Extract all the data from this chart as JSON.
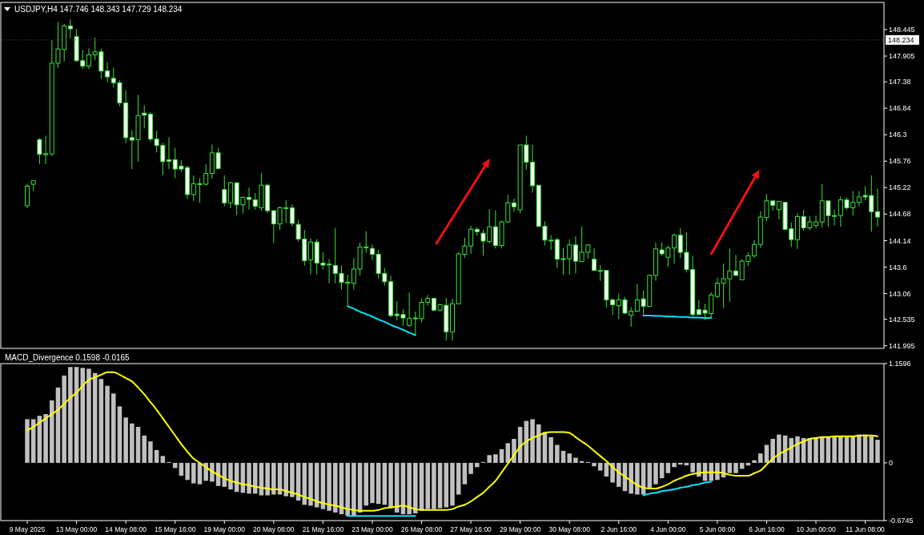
{
  "chart_data": [
    {
      "type": "candlestick",
      "title": "USDJPY,H4  147.746 148.343 147.729 148.234",
      "tick_labels": "y",
      "categories": [
        null,
        null,
        null,
        null,
        null,
        null,
        null,
        null,
        null,
        null,
        null,
        null,
        null,
        null,
        null,
        null,
        null,
        null,
        null,
        null,
        null,
        null,
        null,
        null,
        null,
        null,
        null,
        null,
        null,
        null,
        null,
        null,
        null,
        null,
        null,
        null,
        null,
        null,
        null,
        null,
        null,
        null,
        null,
        null,
        null,
        null,
        null,
        null,
        null,
        null,
        null,
        null,
        null,
        null,
        null,
        null,
        null,
        null,
        null,
        null,
        null,
        null,
        null,
        null,
        null,
        null,
        null,
        null,
        null,
        null,
        null,
        null,
        null,
        null,
        null,
        null,
        null,
        null,
        null,
        null,
        null,
        null,
        null,
        null,
        null,
        null,
        null,
        null,
        null,
        null,
        null,
        null,
        null,
        null,
        null,
        null,
        null,
        null,
        null,
        null,
        null,
        null,
        null,
        null,
        null,
        null,
        null,
        null,
        null,
        null,
        null,
        null,
        null,
        null,
        null,
        null,
        null,
        null,
        null,
        null,
        null,
        null,
        null,
        null,
        null,
        null,
        null,
        null,
        null,
        null,
        null,
        null,
        null,
        null,
        null,
        null,
        null,
        null,
        null
      ],
      "ohlc": [
        [
          144.85,
          145.3,
          144.8,
          145.25
        ],
        [
          145.29,
          145.36,
          145.15,
          145.36
        ],
        [
          146.2,
          146.23,
          145.7,
          145.9
        ],
        [
          145.91,
          146.28,
          145.7,
          145.91
        ],
        [
          145.91,
          148.23,
          145.86,
          147.76
        ],
        [
          147.76,
          148.6,
          147.66,
          148.05
        ],
        [
          148.04,
          148.56,
          147.8,
          148.52
        ],
        [
          148.52,
          148.65,
          148.27,
          148.46
        ],
        [
          148.3,
          148.46,
          147.79,
          147.81
        ],
        [
          147.81,
          148.03,
          147.64,
          147.7
        ],
        [
          147.7,
          148.06,
          147.64,
          147.93
        ],
        [
          147.93,
          148.28,
          147.82,
          147.99
        ],
        [
          147.99,
          148.06,
          147.44,
          147.6
        ],
        [
          147.6,
          147.78,
          147.37,
          147.48
        ],
        [
          147.45,
          147.67,
          147.26,
          147.36
        ],
        [
          147.36,
          147.41,
          146.88,
          146.95
        ],
        [
          146.95,
          147.21,
          146.13,
          146.24
        ],
        [
          146.24,
          146.39,
          145.6,
          146.19
        ],
        [
          146.2,
          147.11,
          145.75,
          146.69
        ],
        [
          146.74,
          146.9,
          146.43,
          146.7
        ],
        [
          146.72,
          146.76,
          146.16,
          146.21
        ],
        [
          146.21,
          146.38,
          145.94,
          146.08
        ],
        [
          146.08,
          146.14,
          145.47,
          145.75
        ],
        [
          145.79,
          146.25,
          145.6,
          145.76
        ],
        [
          145.79,
          146.03,
          145.41,
          145.6
        ],
        [
          145.66,
          145.78,
          145.54,
          145.6
        ],
        [
          145.63,
          145.67,
          144.99,
          145.08
        ],
        [
          145.08,
          145.47,
          144.95,
          145.3
        ],
        [
          145.3,
          145.41,
          144.91,
          145.3
        ],
        [
          145.29,
          145.7,
          145.26,
          145.51
        ],
        [
          145.51,
          146.1,
          145.4,
          145.93
        ],
        [
          145.93,
          146.03,
          145.6,
          145.61
        ],
        [
          145.18,
          145.47,
          144.84,
          144.91
        ],
        [
          144.91,
          145.34,
          144.8,
          145.32
        ],
        [
          145.32,
          145.32,
          144.66,
          144.87
        ],
        [
          144.87,
          145.04,
          144.69,
          145.02
        ],
        [
          145.02,
          145.22,
          144.77,
          144.98
        ],
        [
          144.97,
          145.11,
          144.77,
          144.84
        ],
        [
          144.81,
          145.52,
          144.75,
          145.27
        ],
        [
          145.27,
          145.3,
          144.7,
          144.75
        ],
        [
          144.75,
          144.75,
          144.09,
          144.48
        ],
        [
          144.48,
          144.84,
          144.36,
          144.81
        ],
        [
          144.81,
          144.97,
          144.5,
          144.81
        ],
        [
          144.81,
          144.88,
          144.43,
          144.49
        ],
        [
          144.47,
          144.56,
          144.12,
          144.17
        ],
        [
          144.17,
          144.36,
          143.63,
          143.73
        ],
        [
          143.75,
          144.19,
          143.45,
          144.11
        ],
        [
          144.11,
          144.17,
          143.45,
          143.68
        ],
        [
          143.68,
          143.9,
          143.55,
          143.64
        ],
        [
          143.66,
          143.76,
          143.27,
          143.66
        ],
        [
          143.63,
          144.4,
          143.27,
          143.47
        ],
        [
          143.47,
          143.63,
          143.14,
          143.29
        ],
        [
          143.29,
          143.44,
          142.8,
          143.29
        ],
        [
          143.27,
          143.78,
          143.14,
          143.56
        ],
        [
          143.56,
          144.1,
          143.43,
          144.01
        ],
        [
          144.01,
          144.33,
          143.89,
          144.01
        ],
        [
          143.98,
          144.06,
          143.74,
          143.86
        ],
        [
          143.86,
          143.95,
          143.36,
          143.47
        ],
        [
          143.47,
          143.58,
          143.22,
          143.3
        ],
        [
          143.3,
          143.42,
          142.57,
          142.61
        ],
        [
          142.64,
          142.9,
          142.51,
          142.61
        ],
        [
          142.63,
          142.74,
          142.4,
          142.56
        ],
        [
          142.41,
          143.08,
          142.38,
          142.55
        ],
        [
          142.56,
          142.69,
          142.21,
          142.56
        ],
        [
          142.55,
          142.96,
          142.47,
          142.88
        ],
        [
          142.88,
          143.03,
          142.81,
          142.96
        ],
        [
          142.96,
          142.97,
          142.7,
          142.72
        ],
        [
          142.72,
          142.85,
          142.69,
          142.83
        ],
        [
          142.82,
          142.97,
          142.1,
          142.28
        ],
        [
          142.28,
          142.95,
          142.1,
          142.85
        ],
        [
          142.85,
          143.9,
          142.84,
          143.87
        ],
        [
          143.86,
          144.2,
          143.79,
          144.03
        ],
        [
          144.03,
          144.44,
          143.87,
          144.37
        ],
        [
          144.37,
          144.41,
          144.24,
          144.32
        ],
        [
          144.29,
          144.36,
          143.83,
          144.13
        ],
        [
          144.12,
          144.78,
          144.08,
          144.42
        ],
        [
          144.42,
          144.76,
          143.98,
          144.04
        ],
        [
          144.04,
          144.55,
          143.98,
          144.52
        ],
        [
          144.52,
          145.07,
          144.51,
          144.91
        ],
        [
          144.91,
          145.0,
          144.73,
          144.83
        ],
        [
          144.77,
          146.09,
          144.7,
          146.09
        ],
        [
          146.09,
          146.28,
          145.59,
          145.74
        ],
        [
          145.74,
          146.1,
          145.12,
          145.26
        ],
        [
          145.27,
          145.27,
          144.41,
          144.43
        ],
        [
          144.43,
          144.53,
          144.04,
          144.15
        ],
        [
          144.15,
          144.25,
          143.95,
          144.15
        ],
        [
          144.16,
          144.2,
          143.58,
          143.76
        ],
        [
          143.77,
          143.99,
          143.44,
          143.77
        ],
        [
          143.77,
          144.16,
          143.44,
          144.05
        ],
        [
          144.05,
          144.23,
          143.47,
          143.72
        ],
        [
          143.71,
          144.43,
          143.71,
          143.9
        ],
        [
          143.9,
          144.07,
          143.77,
          144.05
        ],
        [
          143.76,
          143.98,
          143.52,
          143.53
        ],
        [
          143.53,
          143.64,
          143.32,
          143.53
        ],
        [
          143.53,
          143.54,
          142.78,
          142.93
        ],
        [
          142.93,
          142.96,
          142.62,
          142.83
        ],
        [
          142.81,
          143.06,
          142.54,
          142.93
        ],
        [
          142.93,
          142.99,
          142.64,
          142.66
        ],
        [
          142.62,
          142.78,
          142.38,
          142.7
        ],
        [
          142.7,
          143.26,
          142.7,
          142.93
        ],
        [
          142.95,
          143.12,
          142.62,
          142.8
        ],
        [
          142.8,
          143.45,
          142.8,
          143.43
        ],
        [
          143.43,
          144.1,
          143.32,
          143.97
        ],
        [
          143.95,
          144.1,
          143.83,
          143.87
        ],
        [
          143.8,
          144.04,
          143.6,
          143.99
        ],
        [
          143.99,
          144.28,
          143.67,
          144.25
        ],
        [
          144.25,
          144.39,
          143.79,
          143.9
        ],
        [
          143.9,
          144.31,
          143.49,
          143.55
        ],
        [
          143.55,
          143.83,
          142.59,
          142.63
        ],
        [
          142.73,
          142.92,
          142.62,
          142.63
        ],
        [
          142.72,
          142.85,
          142.52,
          142.66
        ],
        [
          142.65,
          143.08,
          142.57,
          143.03
        ],
        [
          143.0,
          143.38,
          142.97,
          143.27
        ],
        [
          143.27,
          143.67,
          142.76,
          143.36
        ],
        [
          143.36,
          143.98,
          142.89,
          143.52
        ],
        [
          143.52,
          143.85,
          143.41,
          143.43
        ],
        [
          143.34,
          143.76,
          143.33,
          143.72
        ],
        [
          143.71,
          143.9,
          143.62,
          143.83
        ],
        [
          143.83,
          144.15,
          143.79,
          144.06
        ],
        [
          144.06,
          144.74,
          143.99,
          144.62
        ],
        [
          144.61,
          145.09,
          144.54,
          144.95
        ],
        [
          144.95,
          144.95,
          144.75,
          144.86
        ],
        [
          144.77,
          144.94,
          144.57,
          144.94
        ],
        [
          144.92,
          144.92,
          144.35,
          144.37
        ],
        [
          144.38,
          144.51,
          144.01,
          144.16
        ],
        [
          144.16,
          144.7,
          143.97,
          144.63
        ],
        [
          144.63,
          144.77,
          144.34,
          144.4
        ],
        [
          144.4,
          144.64,
          144.35,
          144.52
        ],
        [
          144.45,
          144.65,
          144.39,
          144.52
        ],
        [
          144.52,
          145.29,
          144.41,
          144.95
        ],
        [
          144.95,
          144.95,
          144.42,
          144.65
        ],
        [
          144.65,
          144.77,
          144.45,
          144.65
        ],
        [
          144.65,
          145.04,
          144.42,
          144.97
        ],
        [
          144.97,
          145.02,
          144.77,
          144.81
        ],
        [
          144.81,
          145.15,
          144.65,
          144.92
        ],
        [
          144.92,
          145.15,
          144.84,
          145.03
        ],
        [
          145.06,
          145.25,
          144.96,
          145.03
        ],
        [
          145.06,
          145.47,
          144.32,
          144.73
        ],
        [
          144.73,
          145.2,
          144.43,
          144.62
        ]
      ],
      "series": [
        {
          "type": "line",
          "color": "#00e5ff",
          "values": [
            null,
            null,
            null,
            null,
            null,
            null,
            null,
            null,
            null,
            null,
            null,
            null,
            null,
            null,
            null,
            null,
            null,
            null,
            null,
            null,
            null,
            null,
            null,
            null,
            null,
            null,
            null,
            null,
            null,
            null,
            null,
            null,
            null,
            null,
            null,
            null,
            null,
            null,
            null,
            null,
            null,
            null,
            null,
            null,
            null,
            null,
            null,
            null,
            null,
            null,
            null,
            null,
            142.8,
            142.75,
            142.69,
            142.64,
            142.59,
            142.53,
            142.48,
            142.42,
            142.37,
            142.32,
            142.26,
            142.21,
            null,
            null,
            null,
            null,
            null,
            null,
            null,
            null,
            null,
            null,
            null,
            null,
            null,
            null,
            null,
            null,
            null,
            null,
            null,
            null,
            null,
            null,
            null,
            null,
            null,
            null,
            null,
            null,
            null,
            null,
            null,
            null,
            null,
            null,
            null,
            null,
            142.61,
            142.61,
            142.6,
            142.6,
            142.59,
            142.59,
            142.58,
            142.58,
            142.57,
            142.57,
            142.56,
            142.56,
            null,
            null,
            null,
            null,
            null,
            null,
            null,
            null,
            null,
            null,
            null,
            null,
            null,
            null,
            null,
            null,
            null,
            null,
            null,
            null,
            null,
            null,
            null,
            null,
            null,
            null,
            null
          ]
        }
      ],
      "ylim": [
        141.94,
        149.0
      ],
      "yticks": [
        141.995,
        142.535,
        143.06,
        143.6,
        144.14,
        144.68,
        145.22,
        145.76,
        146.3,
        146.84,
        147.38,
        147.905,
        148.445
      ],
      "ref_lines": [
        {
          "axis": "y",
          "value": 148.234,
          "label": "148.234"
        }
      ]
    },
    {
      "type": "bar",
      "title": "MACD_Divergence 0.1598 -0.0165",
      "categories": [
        "9 May 2025",
        null,
        null,
        null,
        null,
        null,
        null,
        null,
        "13 May 00:00",
        null,
        null,
        null,
        null,
        null,
        null,
        null,
        "14 May 08:00",
        null,
        null,
        null,
        null,
        null,
        null,
        null,
        "15 May 16:00",
        null,
        null,
        null,
        null,
        null,
        null,
        null,
        "19 May 00:00",
        null,
        null,
        null,
        null,
        null,
        null,
        null,
        "20 May 08:00",
        null,
        null,
        null,
        null,
        null,
        null,
        null,
        "21 May 16:00",
        null,
        null,
        null,
        null,
        null,
        null,
        null,
        "23 May 00:00",
        null,
        null,
        null,
        null,
        null,
        null,
        null,
        "26 May 08:00",
        null,
        null,
        null,
        null,
        null,
        null,
        null,
        "27 May 16:00",
        null,
        null,
        null,
        null,
        null,
        null,
        null,
        "29 May 00:00",
        null,
        null,
        null,
        null,
        null,
        null,
        null,
        "30 May 08:00",
        null,
        null,
        null,
        null,
        null,
        null,
        null,
        "2 Jun 16:00",
        null,
        null,
        null,
        null,
        null,
        null,
        null,
        "4 Jun 00:00",
        null,
        null,
        null,
        null,
        null,
        null,
        null,
        "5 Jun 08:00",
        null,
        null,
        null,
        null,
        null,
        null,
        null,
        "6 Jun 16:00",
        null,
        null,
        null,
        null,
        null,
        null,
        null,
        "10 Jun 00:00",
        null,
        null,
        null,
        null,
        null,
        null,
        null,
        "11 Jun 08:00",
        null,
        null
      ],
      "series": [
        {
          "type": "bar",
          "color": "#c0c0c0",
          "values": [
            0.51,
            0.51,
            0.55,
            0.57,
            0.73,
            0.88,
            1.02,
            1.12,
            1.12,
            1.11,
            1.1,
            1.05,
            0.98,
            0.9,
            0.81,
            0.66,
            0.53,
            0.46,
            0.42,
            0.32,
            0.25,
            0.15,
            0.08,
            0.01,
            -0.06,
            -0.15,
            -0.2,
            -0.24,
            -0.25,
            -0.21,
            -0.22,
            -0.27,
            -0.28,
            -0.31,
            -0.34,
            -0.35,
            -0.36,
            -0.36,
            -0.38,
            -0.38,
            -0.37,
            -0.37,
            -0.39,
            -0.4,
            -0.44,
            -0.49,
            -0.5,
            -0.52,
            -0.54,
            -0.56,
            -0.58,
            -0.6,
            -0.62,
            -0.62,
            -0.58,
            -0.5,
            -0.47,
            -0.48,
            -0.49,
            -0.53,
            -0.58,
            -0.6,
            -0.6,
            -0.59,
            -0.56,
            -0.54,
            -0.54,
            -0.53,
            -0.52,
            -0.5,
            -0.37,
            -0.25,
            -0.13,
            -0.05,
            0.01,
            0.09,
            0.1,
            0.16,
            0.23,
            0.28,
            0.42,
            0.49,
            0.51,
            0.45,
            0.36,
            0.3,
            0.21,
            0.14,
            0.11,
            0.06,
            0.02,
            0.01,
            -0.04,
            -0.09,
            -0.16,
            -0.23,
            -0.28,
            -0.33,
            -0.36,
            -0.37,
            -0.37,
            -0.29,
            -0.25,
            -0.18,
            -0.12,
            -0.05,
            -0.02,
            -0.03,
            -0.11,
            -0.16,
            -0.21,
            -0.21,
            -0.2,
            -0.17,
            -0.12,
            -0.12,
            -0.07,
            -0.03,
            0.03,
            0.11,
            0.21,
            0.28,
            0.33,
            0.32,
            0.29,
            0.31,
            0.29,
            0.29,
            0.3,
            0.31,
            0.31,
            0.31,
            0.31,
            0.31,
            0.31,
            0.33,
            0.33,
            0.31,
            0.27
          ]
        },
        {
          "type": "line",
          "color": "#ffff00",
          "values": [
            0.38,
            0.42,
            0.47,
            0.52,
            0.57,
            0.62,
            0.69,
            0.76,
            0.82,
            0.9,
            0.97,
            1.0,
            1.03,
            1.06,
            1.06,
            1.03,
            0.99,
            0.95,
            0.88,
            0.8,
            0.71,
            0.62,
            0.52,
            0.42,
            0.32,
            0.22,
            0.13,
            0.05,
            0.0,
            -0.05,
            -0.1,
            -0.14,
            -0.18,
            -0.21,
            -0.23,
            -0.25,
            -0.26,
            -0.28,
            -0.29,
            -0.3,
            -0.31,
            -0.31,
            -0.33,
            -0.35,
            -0.37,
            -0.4,
            -0.42,
            -0.45,
            -0.47,
            -0.49,
            -0.5,
            -0.52,
            -0.54,
            -0.55,
            -0.56,
            -0.56,
            -0.56,
            -0.55,
            -0.53,
            -0.52,
            -0.51,
            -0.5,
            -0.52,
            -0.54,
            -0.55,
            -0.55,
            -0.55,
            -0.55,
            -0.55,
            -0.54,
            -0.51,
            -0.49,
            -0.45,
            -0.4,
            -0.35,
            -0.28,
            -0.21,
            -0.11,
            -0.01,
            0.09,
            0.19,
            0.25,
            0.29,
            0.32,
            0.35,
            0.36,
            0.36,
            0.36,
            0.35,
            0.3,
            0.25,
            0.2,
            0.14,
            0.08,
            0.02,
            -0.05,
            -0.11,
            -0.16,
            -0.21,
            -0.26,
            -0.29,
            -0.3,
            -0.3,
            -0.28,
            -0.25,
            -0.21,
            -0.18,
            -0.15,
            -0.13,
            -0.12,
            -0.11,
            -0.11,
            -0.11,
            -0.12,
            -0.14,
            -0.15,
            -0.15,
            -0.15,
            -0.12,
            -0.09,
            -0.02,
            0.05,
            0.1,
            0.14,
            0.18,
            0.22,
            0.25,
            0.28,
            0.29,
            0.3,
            0.3,
            0.31,
            0.31,
            0.31,
            0.31,
            0.32,
            0.32,
            0.32,
            0.31
          ]
        },
        {
          "type": "line",
          "color": "#00e5ff",
          "values": [
            null,
            null,
            null,
            null,
            null,
            null,
            null,
            null,
            null,
            null,
            null,
            null,
            null,
            null,
            null,
            null,
            null,
            null,
            null,
            null,
            null,
            null,
            null,
            null,
            null,
            null,
            null,
            null,
            null,
            null,
            null,
            null,
            null,
            null,
            null,
            null,
            null,
            null,
            null,
            null,
            null,
            null,
            null,
            null,
            null,
            null,
            null,
            null,
            null,
            null,
            null,
            null,
            -0.62,
            -0.62,
            -0.62,
            -0.62,
            -0.62,
            -0.62,
            -0.62,
            -0.62,
            -0.62,
            -0.62,
            -0.62,
            -0.62,
            null,
            null,
            null,
            null,
            null,
            null,
            null,
            null,
            null,
            null,
            null,
            null,
            null,
            null,
            null,
            null,
            null,
            null,
            null,
            null,
            null,
            null,
            null,
            null,
            null,
            null,
            null,
            null,
            null,
            null,
            null,
            null,
            null,
            null,
            null,
            null,
            -0.38,
            -0.36,
            -0.35,
            -0.33,
            -0.32,
            -0.31,
            -0.29,
            -0.28,
            -0.26,
            -0.25,
            -0.23,
            -0.22,
            null,
            null,
            null,
            null,
            null,
            null,
            null,
            null,
            null,
            null,
            null,
            null,
            null,
            null,
            null,
            null,
            null,
            null,
            null,
            null,
            null,
            null,
            null,
            null,
            null,
            null,
            null
          ]
        }
      ],
      "ylim": [
        -0.6745,
        1.1596
      ],
      "yticks": [
        -0.6745,
        0.0,
        1.1596
      ]
    }
  ]
}
